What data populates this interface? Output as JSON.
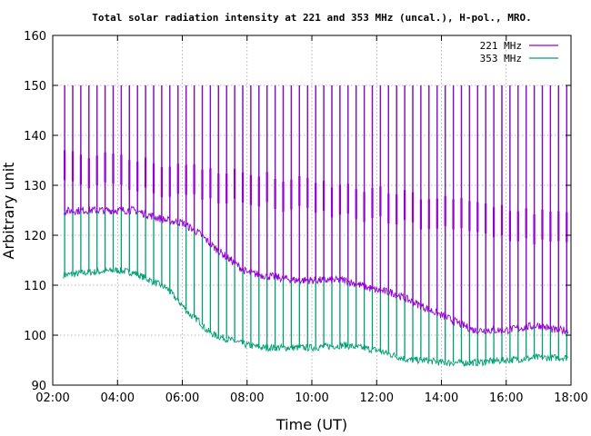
{
  "chart_data": {
    "type": "line",
    "title": "Total solar radiation intensity at 221 and 353 MHz (uncal.), H-pol., MRO.",
    "xlabel": "Time (UT)",
    "ylabel": "Arbitrary unit",
    "xlim": [
      "02:00",
      "18:00"
    ],
    "ylim": [
      90,
      160
    ],
    "x_ticks": [
      "02:00",
      "04:00",
      "06:00",
      "08:00",
      "10:00",
      "12:00",
      "14:00",
      "16:00",
      "18:00"
    ],
    "y_ticks": [
      "90",
      "100",
      "110",
      "120",
      "130",
      "140",
      "150",
      "160"
    ],
    "grid": true,
    "legend_position": "top-right",
    "series": [
      {
        "name": "221 MHz",
        "color": "#9400d3",
        "x": [
          "02:20",
          "03:00",
          "04:00",
          "04:30",
          "05:00",
          "05:30",
          "06:00",
          "06:30",
          "07:00",
          "07:30",
          "08:00",
          "08:30",
          "09:00",
          "09:30",
          "10:00",
          "10:30",
          "11:00",
          "11:30",
          "12:00",
          "12:30",
          "13:00",
          "13:30",
          "14:00",
          "14:30",
          "15:00",
          "15:30",
          "16:00",
          "16:30",
          "17:00",
          "17:30",
          "17:55"
        ],
        "values": [
          124.8,
          125,
          125,
          125,
          124,
          123,
          122.5,
          120.5,
          117.5,
          115,
          112.5,
          112,
          111.5,
          111,
          111,
          111,
          111,
          110,
          109,
          108.5,
          107,
          105.5,
          104,
          102.5,
          101,
          101,
          101,
          101.5,
          102,
          101,
          101
        ],
        "calibration_spikes": {
          "period_minutes": 15,
          "peak": 150,
          "upper_band": [
            137,
            124
          ]
        }
      },
      {
        "name": "353 MHz",
        "color": "#009e73",
        "x": [
          "02:20",
          "03:00",
          "04:00",
          "04:30",
          "05:00",
          "05:30",
          "06:00",
          "06:15",
          "06:30",
          "06:45",
          "07:00",
          "07:30",
          "08:00",
          "08:30",
          "09:00",
          "10:00",
          "11:00",
          "12:00",
          "12:30",
          "13:00",
          "13:30",
          "14:00",
          "15:00",
          "16:00",
          "17:00",
          "17:55"
        ],
        "values": [
          112,
          112.5,
          113,
          112.5,
          111,
          109.5,
          106,
          104,
          103,
          101,
          100,
          99,
          98,
          97.5,
          97.5,
          97.5,
          98,
          97,
          96,
          95,
          95,
          94.5,
          94.5,
          95,
          95.5,
          95.5
        ],
        "calibration_spikes": {
          "period_minutes": 15,
          "peak": 150
        }
      }
    ]
  }
}
